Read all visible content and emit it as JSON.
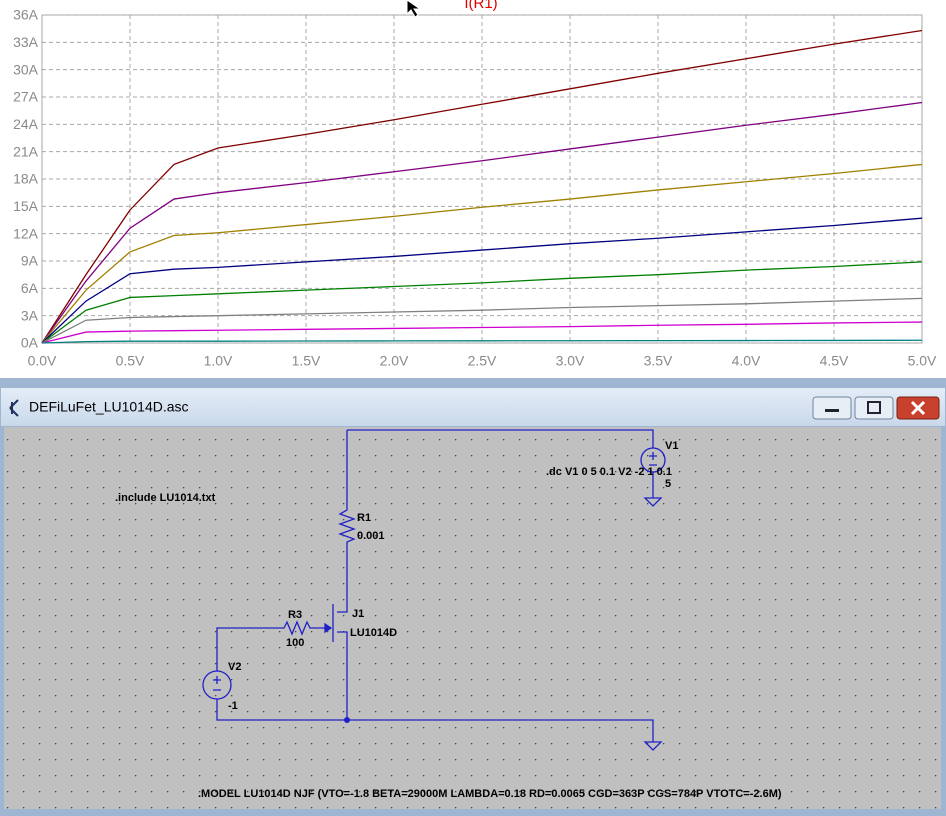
{
  "chart_data": {
    "type": "line",
    "title": "I(R1)",
    "x": [
      0,
      0.25,
      0.5,
      0.75,
      1.0,
      1.5,
      2.0,
      2.5,
      3.0,
      3.5,
      4.0,
      4.5,
      5.0
    ],
    "series": [
      {
        "color": "#800000",
        "values": [
          0,
          7.5,
          14.6,
          19.6,
          21.4,
          22.9,
          24.5,
          26.2,
          27.9,
          29.6,
          31.2,
          32.8,
          34.3
        ]
      },
      {
        "color": "#800080",
        "values": [
          0,
          6.8,
          12.6,
          15.8,
          16.5,
          17.6,
          18.8,
          20.0,
          21.3,
          22.6,
          23.9,
          25.1,
          26.4
        ]
      },
      {
        "color": "#a08000",
        "values": [
          0,
          5.8,
          10.0,
          11.8,
          12.1,
          13.0,
          13.9,
          14.9,
          15.8,
          16.8,
          17.7,
          18.6,
          19.6
        ]
      },
      {
        "color": "#000080",
        "values": [
          0,
          4.6,
          7.6,
          8.1,
          8.3,
          8.9,
          9.5,
          10.2,
          10.9,
          11.5,
          12.2,
          12.9,
          13.7
        ]
      },
      {
        "color": "#008000",
        "values": [
          0,
          3.6,
          5.0,
          5.2,
          5.4,
          5.8,
          6.2,
          6.6,
          7.1,
          7.5,
          8.0,
          8.4,
          8.9
        ]
      },
      {
        "color": "#808080",
        "values": [
          0,
          2.5,
          2.8,
          2.9,
          3.0,
          3.2,
          3.4,
          3.6,
          3.9,
          4.1,
          4.3,
          4.6,
          4.9
        ]
      },
      {
        "color": "#d000d0",
        "values": [
          0,
          1.2,
          1.3,
          1.35,
          1.4,
          1.5,
          1.6,
          1.7,
          1.8,
          1.95,
          2.05,
          2.2,
          2.3
        ]
      },
      {
        "color": "#008080",
        "values": [
          0,
          0.15,
          0.2,
          0.2,
          0.2,
          0.22,
          0.23,
          0.24,
          0.25,
          0.26,
          0.27,
          0.28,
          0.3
        ]
      }
    ],
    "xlim": [
      0,
      5
    ],
    "ylim": [
      0,
      36
    ],
    "xticks": [
      {
        "value": 0,
        "label": "0.0V"
      },
      {
        "value": 0.5,
        "label": "0.5V"
      },
      {
        "value": 1,
        "label": "1.0V"
      },
      {
        "value": 1.5,
        "label": "1.5V"
      },
      {
        "value": 2,
        "label": "2.0V"
      },
      {
        "value": 2.5,
        "label": "2.5V"
      },
      {
        "value": 3,
        "label": "3.0V"
      },
      {
        "value": 3.5,
        "label": "3.5V"
      },
      {
        "value": 4,
        "label": "4.0V"
      },
      {
        "value": 4.5,
        "label": "4.5V"
      },
      {
        "value": 5,
        "label": "5.0V"
      }
    ],
    "yticks": [
      {
        "value": 0,
        "label": "0A"
      },
      {
        "value": 3,
        "label": "3A"
      },
      {
        "value": 6,
        "label": "6A"
      },
      {
        "value": 9,
        "label": "9A"
      },
      {
        "value": 12,
        "label": "12A"
      },
      {
        "value": 15,
        "label": "15A"
      },
      {
        "value": 18,
        "label": "18A"
      },
      {
        "value": 21,
        "label": "21A"
      },
      {
        "value": 24,
        "label": "24A"
      },
      {
        "value": 27,
        "label": "27A"
      },
      {
        "value": 30,
        "label": "30A"
      },
      {
        "value": 33,
        "label": "33A"
      },
      {
        "value": 36,
        "label": "36A"
      }
    ],
    "grid": true
  },
  "window": {
    "title": "DEFiLuFet_LU1014D.asc"
  },
  "schematic": {
    "include": ".include LU1014.txt",
    "dc": ".dc V1 0 5 0.1 V2 -2 1 0.1",
    "v1": {
      "name": "V1",
      "value": "5"
    },
    "r1": {
      "name": "R1",
      "value": "0.001"
    },
    "j1": {
      "name": "J1",
      "value": "LU1014D"
    },
    "r3": {
      "name": "R3",
      "value": "100"
    },
    "v2": {
      "name": "V2",
      "value": "-1"
    },
    "model": ".MODEL LU1014D NJF (VTO=-1.8 BETA=29000M LAMBDA=0.18 RD=0.0065 CGD=363P CGS=784P VTOTC=-2.6M)"
  }
}
